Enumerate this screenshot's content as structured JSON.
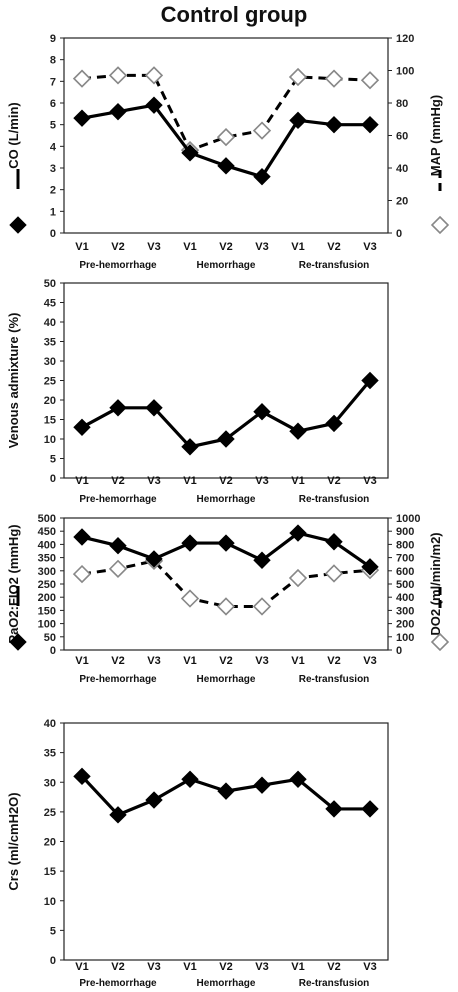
{
  "title": "Control group",
  "categories": [
    "V1",
    "V2",
    "V3",
    "V1",
    "V2",
    "V3",
    "V1",
    "V2",
    "V3"
  ],
  "phases": [
    "Pre-hemorrhage",
    "Hemorrhage",
    "Re-transfusion"
  ],
  "chart_data": [
    {
      "type": "line",
      "ylabel": "CO (L/min)",
      "ylim": [
        0,
        9
      ],
      "yticks": [
        0,
        1,
        2,
        3,
        4,
        5,
        6,
        7,
        8,
        9
      ],
      "y2label": "MAP (mmHg)",
      "y2lim": [
        0,
        120
      ],
      "y2ticks": [
        0,
        20,
        40,
        60,
        80,
        100,
        120
      ],
      "series": [
        {
          "values": [
            5.3,
            5.6,
            5.9,
            3.7,
            3.1,
            2.6,
            5.2,
            5.0,
            5.0
          ],
          "marker": "filled-diamond",
          "line": "solid",
          "axis": "left"
        },
        {
          "values": [
            95,
            97,
            97,
            51,
            59,
            63,
            96,
            95,
            94
          ],
          "marker": "open-diamond",
          "line": "dashed",
          "axis": "right"
        }
      ]
    },
    {
      "type": "line",
      "ylabel": "Venous admixture (%)",
      "ylim": [
        0,
        50
      ],
      "yticks": [
        0,
        5,
        10,
        15,
        20,
        25,
        30,
        35,
        40,
        45,
        50
      ],
      "series": [
        {
          "values": [
            13,
            18,
            18,
            8,
            10,
            17,
            12,
            14,
            25
          ],
          "marker": "filled-diamond",
          "line": "solid",
          "axis": "left"
        }
      ]
    },
    {
      "type": "line",
      "ylabel": "PaO2:FIO2 (mmHg)",
      "ylim": [
        0,
        500
      ],
      "yticks": [
        0,
        50,
        100,
        150,
        200,
        250,
        300,
        350,
        400,
        450,
        500
      ],
      "y2label": "DO2 (ml/min/m2)",
      "y2lim": [
        0,
        1000
      ],
      "y2ticks": [
        0,
        100,
        200,
        300,
        400,
        500,
        600,
        700,
        800,
        900,
        1000
      ],
      "series": [
        {
          "values": [
            428,
            395,
            345,
            405,
            405,
            340,
            443,
            410,
            315
          ],
          "marker": "filled-diamond",
          "line": "solid",
          "axis": "left"
        },
        {
          "values": [
            575,
            615,
            675,
            390,
            330,
            330,
            545,
            580,
            605
          ],
          "marker": "open-diamond",
          "line": "dashed",
          "axis": "right"
        }
      ]
    },
    {
      "type": "line",
      "ylabel": "Crs (ml/cmH2O)",
      "ylim": [
        0,
        40
      ],
      "yticks": [
        0,
        5,
        10,
        15,
        20,
        25,
        30,
        35,
        40
      ],
      "series": [
        {
          "values": [
            31,
            24.5,
            27,
            30.5,
            28.5,
            29.5,
            30.5,
            25.5,
            25.5
          ],
          "marker": "filled-diamond",
          "line": "solid",
          "axis": "left"
        }
      ]
    }
  ]
}
